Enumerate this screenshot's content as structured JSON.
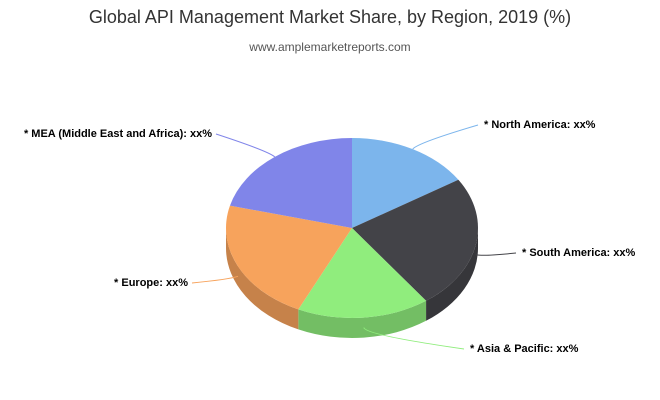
{
  "chart_data": {
    "type": "pie3d",
    "title": "Global API Management Market Share, by Region, 2019 (%)",
    "subtitle": "www.amplemarketreports.com",
    "categories": [
      "* North America: xx%",
      "* South America: xx%",
      "* Asia & Pacific: xx%",
      "* Europe: xx%",
      "* MEA (Middle East and Africa): xx%"
    ],
    "values": [
      16,
      24,
      17,
      22,
      21
    ],
    "colors": [
      "#7cb5ec",
      "#434348",
      "#90ed7d",
      "#f7a35c",
      "#8085e9"
    ]
  }
}
